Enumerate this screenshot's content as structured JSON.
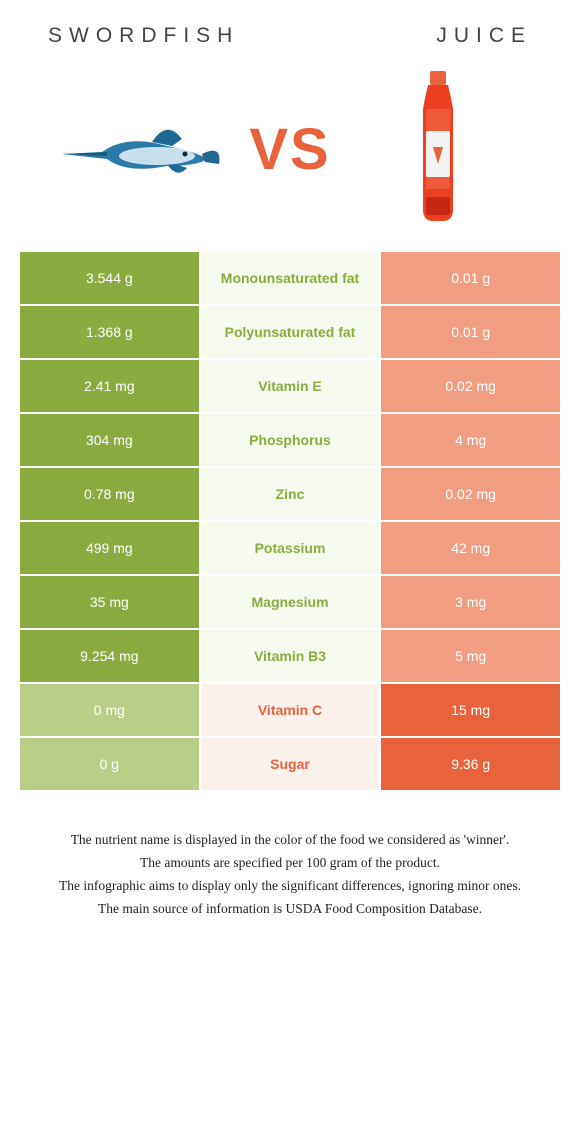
{
  "header": {
    "left_title": "SWORDFISH",
    "right_title": "JUICE",
    "vs": "VS"
  },
  "colors": {
    "left_win": "#8aab3f",
    "left_lose": "#b9cf87",
    "right_win": "#e8623c",
    "right_lose": "#f09d82",
    "mid_left": "#f7faef",
    "mid_right": "#fdf1ec",
    "mid_text_left": "#8aab3f",
    "mid_text_right": "#e8623c",
    "background": "#ffffff",
    "header_text": "#444444",
    "footer_text": "#222222"
  },
  "typography": {
    "header_fontsize": 21,
    "header_letterspacing": 7,
    "vs_fontsize": 58,
    "cell_fontsize": 14,
    "footer_fontsize": 13.5
  },
  "rows": [
    {
      "left": "3.544 g",
      "label": "Monounsaturated fat",
      "right": "0.01 g",
      "winner": "left"
    },
    {
      "left": "1.368 g",
      "label": "Polyunsaturated fat",
      "right": "0.01 g",
      "winner": "left"
    },
    {
      "left": "2.41 mg",
      "label": "Vitamin E",
      "right": "0.02 mg",
      "winner": "left"
    },
    {
      "left": "304 mg",
      "label": "Phosphorus",
      "right": "4 mg",
      "winner": "left"
    },
    {
      "left": "0.78 mg",
      "label": "Zinc",
      "right": "0.02 mg",
      "winner": "left"
    },
    {
      "left": "499 mg",
      "label": "Potassium",
      "right": "42 mg",
      "winner": "left"
    },
    {
      "left": "35 mg",
      "label": "Magnesium",
      "right": "3 mg",
      "winner": "left"
    },
    {
      "left": "9.254 mg",
      "label": "Vitamin B3",
      "right": "5 mg",
      "winner": "left"
    },
    {
      "left": "0 mg",
      "label": "Vitamin C",
      "right": "15 mg",
      "winner": "right"
    },
    {
      "left": "0 g",
      "label": "Sugar",
      "right": "9.36 g",
      "winner": "right"
    }
  ],
  "footer": {
    "line1": "The nutrient name is displayed in the color of the food we considered as 'winner'.",
    "line2": "The amounts are specified per 100 gram of the product.",
    "line3": "The infographic aims to display only the significant differences, ignoring minor ones.",
    "line4": "The main source of information is USDA Food Composition Database."
  }
}
